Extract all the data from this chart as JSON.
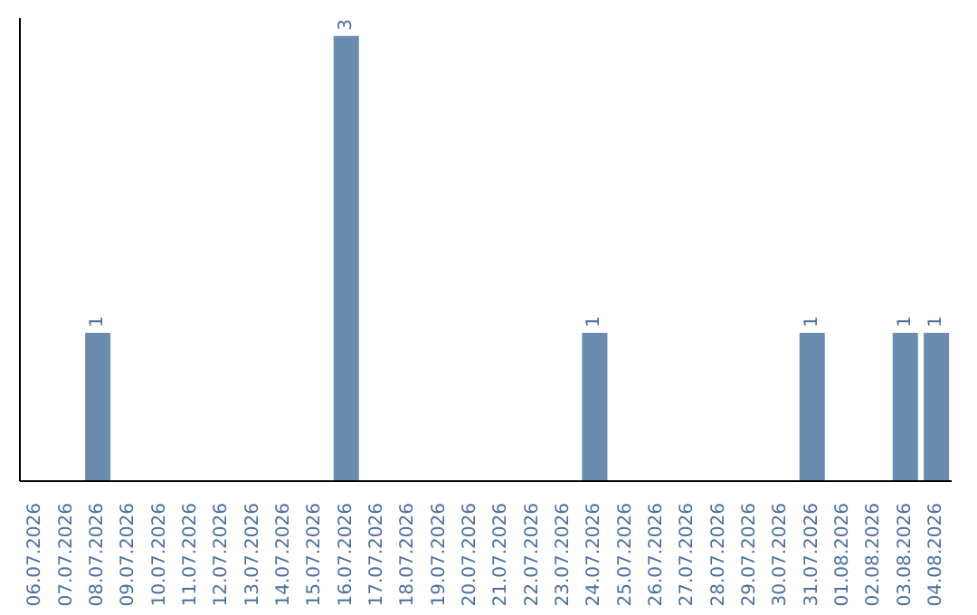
{
  "chart_data": {
    "type": "bar",
    "categories": [
      "06.07.2026",
      "07.07.2026",
      "08.07.2026",
      "09.07.2026",
      "10.07.2026",
      "11.07.2026",
      "12.07.2026",
      "13.07.2026",
      "14.07.2026",
      "15.07.2026",
      "16.07.2026",
      "17.07.2026",
      "18.07.2026",
      "19.07.2026",
      "20.07.2026",
      "21.07.2026",
      "22.07.2026",
      "23.07.2026",
      "24.07.2026",
      "25.07.2026",
      "26.07.2026",
      "27.07.2026",
      "28.07.2026",
      "29.07.2026",
      "30.07.2026",
      "31.07.2026",
      "01.08.2026",
      "02.08.2026",
      "03.08.2026",
      "04.08.2026"
    ],
    "values": [
      0,
      0,
      1,
      0,
      0,
      0,
      0,
      0,
      0,
      0,
      3,
      0,
      0,
      0,
      0,
      0,
      0,
      0,
      1,
      0,
      0,
      0,
      0,
      0,
      0,
      1,
      0,
      0,
      1,
      1
    ],
    "value_labels": [
      null,
      null,
      "1",
      null,
      null,
      null,
      null,
      null,
      null,
      null,
      "3",
      null,
      null,
      null,
      null,
      null,
      null,
      null,
      "1",
      null,
      null,
      null,
      null,
      null,
      null,
      "1",
      null,
      null,
      "1",
      "1"
    ],
    "color": "#6a8caf"
  }
}
